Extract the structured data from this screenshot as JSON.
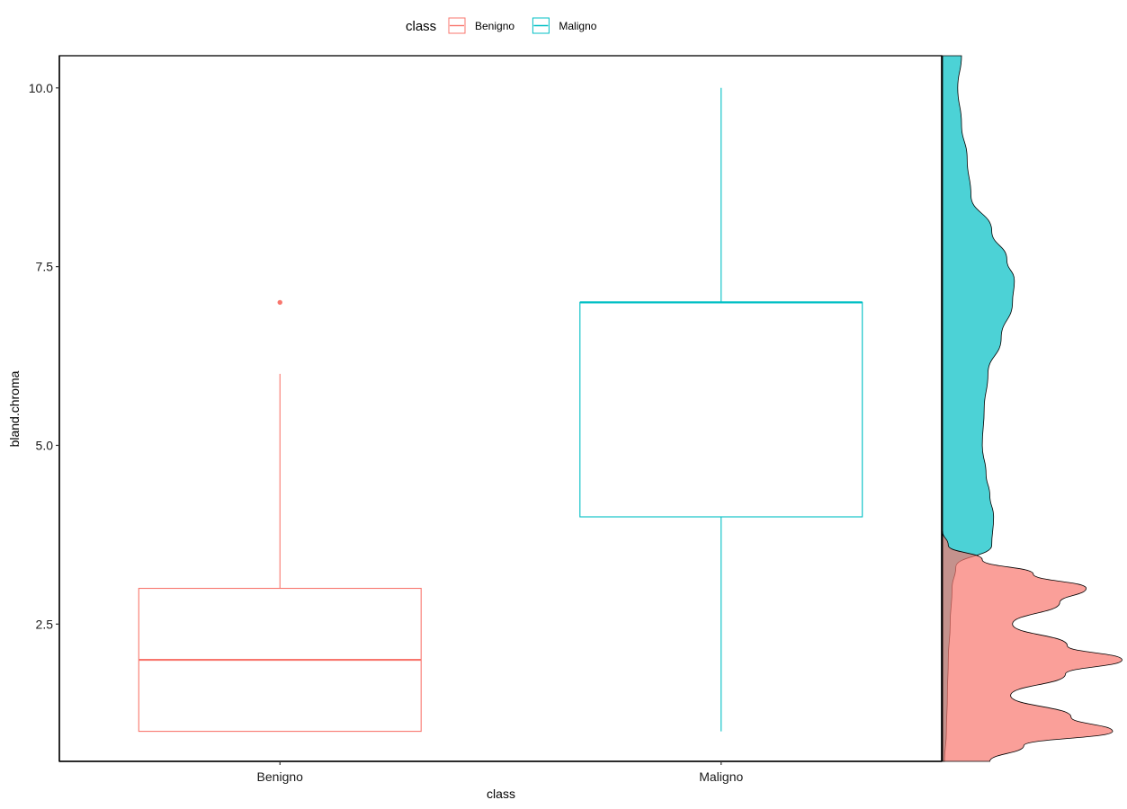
{
  "chart_data": {
    "type": "boxplot",
    "title": "",
    "xlabel": "class",
    "ylabel": "bland.chroma",
    "ylim": [
      0.58,
      10.45
    ],
    "y_ticks": [
      2.5,
      5.0,
      7.5,
      10.0
    ],
    "y_tick_labels": [
      "2.5",
      "5.0",
      "7.5",
      "10.0"
    ],
    "grid": false,
    "legend": {
      "title": "class",
      "position": "top",
      "entries": [
        {
          "label": "Benigno",
          "color": "#F8766D"
        },
        {
          "label": "Maligno",
          "color": "#00BFC4"
        }
      ]
    },
    "categories": [
      "Benigno",
      "Maligno"
    ],
    "series": [
      {
        "name": "Benigno",
        "color": "#F8766D",
        "whisker_low": 1.0,
        "q1": 1.0,
        "median": 2.0,
        "q3": 3.0,
        "whisker_high": 6.0,
        "outliers": [
          7.0
        ]
      },
      {
        "name": "Maligno",
        "color": "#00BFC4",
        "whisker_low": 1.0,
        "q1": 4.0,
        "median": 7.0,
        "q3": 7.0,
        "whisker_high": 10.0,
        "outliers": []
      }
    ],
    "marginal_density": {
      "side": "right",
      "series": [
        {
          "name": "Maligno",
          "fill": "#00BFC4",
          "points": [
            [
              0.58,
              0.01
            ],
            [
              1.0,
              0.02
            ],
            [
              1.5,
              0.025
            ],
            [
              2.0,
              0.03
            ],
            [
              2.5,
              0.04
            ],
            [
              3.0,
              0.05
            ],
            [
              3.3,
              0.07
            ],
            [
              3.6,
              0.26
            ],
            [
              4.0,
              0.27
            ],
            [
              4.3,
              0.25
            ],
            [
              4.6,
              0.23
            ],
            [
              5.0,
              0.21
            ],
            [
              5.5,
              0.22
            ],
            [
              6.0,
              0.24
            ],
            [
              6.5,
              0.31
            ],
            [
              7.0,
              0.37
            ],
            [
              7.3,
              0.38
            ],
            [
              7.6,
              0.34
            ],
            [
              8.0,
              0.26
            ],
            [
              8.5,
              0.15
            ],
            [
              9.0,
              0.13
            ],
            [
              9.5,
              0.1
            ],
            [
              10.0,
              0.08
            ],
            [
              10.45,
              0.1
            ]
          ]
        },
        {
          "name": "Benigno",
          "fill": "#F8766D",
          "points": [
            [
              0.58,
              0.25
            ],
            [
              0.8,
              0.43
            ],
            [
              1.0,
              0.9
            ],
            [
              1.2,
              0.68
            ],
            [
              1.5,
              0.36
            ],
            [
              1.8,
              0.65
            ],
            [
              2.0,
              0.95
            ],
            [
              2.2,
              0.66
            ],
            [
              2.5,
              0.37
            ],
            [
              2.8,
              0.62
            ],
            [
              3.0,
              0.76
            ],
            [
              3.2,
              0.48
            ],
            [
              3.4,
              0.21
            ],
            [
              3.6,
              0.03
            ],
            [
              3.8,
              0.0
            ]
          ]
        }
      ]
    }
  }
}
